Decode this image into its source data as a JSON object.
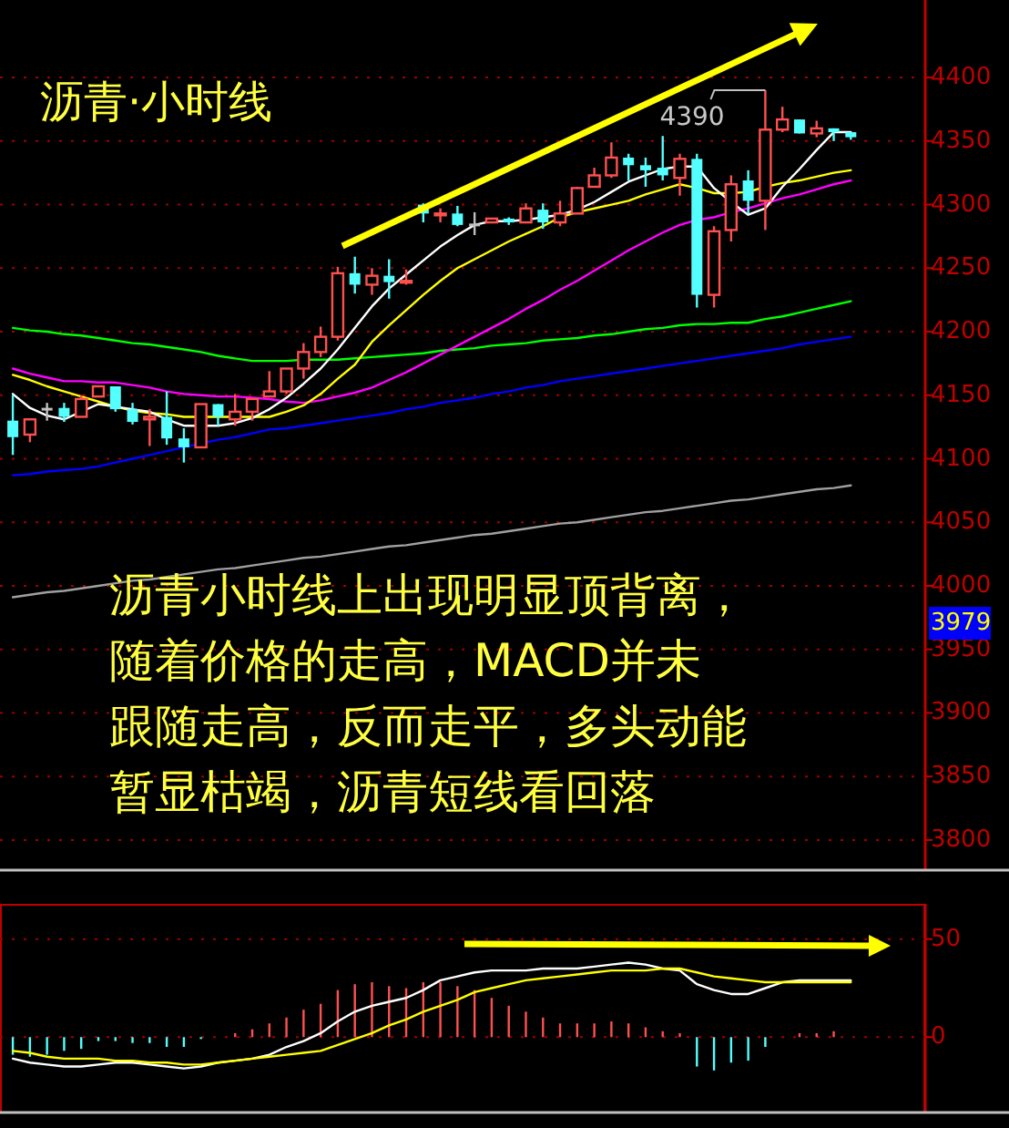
{
  "chart_data": [
    {
      "type": "candlestick",
      "title": "沥青·小时线",
      "categories": [
        null,
        null,
        null,
        null,
        null,
        null,
        null,
        null,
        null,
        null,
        null,
        null,
        null,
        null,
        null,
        null,
        null,
        null,
        null,
        null,
        null,
        null,
        null,
        null,
        null,
        null,
        null,
        null,
        null,
        null,
        null,
        null,
        null,
        null,
        null,
        null,
        null,
        null,
        null,
        null,
        null,
        null,
        null,
        null,
        null,
        null,
        null,
        null,
        null,
        null
      ],
      "ohlc": [
        [
          4130,
          4150,
          4103,
          4117
        ],
        [
          4119,
          4131,
          4113,
          4131
        ],
        [
          4139,
          4144,
          4130,
          4139
        ],
        [
          4140,
          4144,
          4129,
          4133
        ],
        [
          4133,
          4150,
          4133,
          4147
        ],
        [
          4149,
          4157,
          4149,
          4157
        ],
        [
          4157,
          4157,
          4137,
          4139
        ],
        [
          4139,
          4144,
          4127,
          4129
        ],
        [
          4131,
          4139,
          4110,
          4133
        ],
        [
          4133,
          4153,
          4111,
          4116
        ],
        [
          4116,
          4124,
          4097,
          4109
        ],
        [
          4109,
          4143,
          4109,
          4143
        ],
        [
          4143,
          4143,
          4126,
          4133
        ],
        [
          4131,
          4151,
          4126,
          4137
        ],
        [
          4137,
          4147,
          4130,
          4147
        ],
        [
          4149,
          4169,
          4149,
          4153
        ],
        [
          4153,
          4171,
          4151,
          4171
        ],
        [
          4171,
          4191,
          4163,
          4184
        ],
        [
          4184,
          4204,
          4180,
          4196
        ],
        [
          4196,
          4251,
          4193,
          4246
        ],
        [
          4246,
          4259,
          4230,
          4237
        ],
        [
          4237,
          4250,
          4229,
          4244
        ],
        [
          4244,
          4257,
          4226,
          4239
        ],
        [
          4239,
          4249,
          4237,
          4240
        ],
        [
          4300,
          4301,
          4286,
          4293
        ],
        [
          4292,
          4297,
          4286,
          4293
        ],
        [
          4293,
          4299,
          4283,
          4284
        ],
        [
          4284,
          4294,
          4276,
          4284
        ],
        [
          4286,
          4289,
          4286,
          4289
        ],
        [
          4289,
          4290,
          4284,
          4286
        ],
        [
          4286,
          4301,
          4286,
          4297
        ],
        [
          4296,
          4301,
          4281,
          4286
        ],
        [
          4286,
          4303,
          4283,
          4293
        ],
        [
          4293,
          4314,
          4293,
          4313
        ],
        [
          4314,
          4329,
          4314,
          4323
        ],
        [
          4323,
          4349,
          4321,
          4337
        ],
        [
          4337,
          4340,
          4319,
          4331
        ],
        [
          4331,
          4337,
          4314,
          4327
        ],
        [
          4329,
          4354,
          4319,
          4323
        ],
        [
          4321,
          4340,
          4307,
          4336
        ],
        [
          4336,
          4340,
          4219,
          4229
        ],
        [
          4229,
          4283,
          4219,
          4279
        ],
        [
          4280,
          4323,
          4271,
          4316
        ],
        [
          4319,
          4327,
          4293,
          4303
        ],
        [
          4303,
          4390,
          4280,
          4359
        ],
        [
          4359,
          4377,
          4357,
          4367
        ],
        [
          4367,
          4367,
          4356,
          4356
        ],
        [
          4356,
          4366,
          4353,
          4360
        ],
        [
          4360,
          4360,
          4350,
          4357
        ],
        [
          4357,
          4357,
          4351,
          4353
        ]
      ],
      "series": [
        {
          "type": "line",
          "color": "#a0a0a0",
          "values": [
            3991,
            3993,
            3995,
            3996,
            3998,
            4000,
            4002,
            4004,
            4005,
            4007,
            4009,
            4011,
            4013,
            4014,
            4016,
            4018,
            4020,
            4022,
            4023,
            4025,
            4027,
            4029,
            4031,
            4032,
            4034,
            4036,
            4038,
            4040,
            4041,
            4043,
            4045,
            4047,
            4049,
            4050,
            4052,
            4054,
            4056,
            4058,
            4059,
            4061,
            4063,
            4065,
            4067,
            4068,
            4070,
            4072,
            4074,
            4076,
            4077,
            4079
          ]
        },
        {
          "type": "line",
          "color": "#0000ff",
          "values": [
            4087,
            4088,
            4090,
            4091,
            4092,
            4094,
            4097,
            4100,
            4103,
            4106,
            4109,
            4112,
            4115,
            4117,
            4120,
            4123,
            4124,
            4126,
            4128,
            4130,
            4132,
            4134,
            4136,
            4139,
            4141,
            4144,
            4146,
            4148,
            4151,
            4153,
            4156,
            4158,
            4161,
            4163,
            4165,
            4167,
            4169,
            4171,
            4173,
            4175,
            4177,
            4179,
            4181,
            4183,
            4185,
            4187,
            4190,
            4192,
            4194,
            4196
          ]
        },
        {
          "type": "line",
          "color": "#00ff00",
          "values": [
            4203,
            4201,
            4200,
            4198,
            4197,
            4195,
            4193,
            4191,
            4190,
            4188,
            4186,
            4184,
            4181,
            4179,
            4177,
            4177,
            4177,
            4178,
            4178,
            4178,
            4179,
            4180,
            4181,
            4182,
            4183,
            4185,
            4186,
            4187,
            4189,
            4190,
            4191,
            4193,
            4194,
            4195,
            4197,
            4198,
            4200,
            4202,
            4203,
            4205,
            4206,
            4206,
            4207,
            4207,
            4210,
            4212,
            4215,
            4218,
            4221,
            4224
          ]
        },
        {
          "type": "line",
          "color": "#ff00ff",
          "values": [
            4171,
            4167,
            4164,
            4161,
            4161,
            4160,
            4160,
            4158,
            4156,
            4153,
            4151,
            4150,
            4149,
            4149,
            4148,
            4147,
            4145,
            4144,
            4146,
            4149,
            4152,
            4156,
            4162,
            4168,
            4175,
            4182,
            4189,
            4196,
            4203,
            4210,
            4218,
            4225,
            4233,
            4240,
            4248,
            4256,
            4264,
            4271,
            4278,
            4284,
            4288,
            4290,
            4294,
            4297,
            4301,
            4305,
            4308,
            4312,
            4316,
            4319
          ]
        },
        {
          "type": "line",
          "color": "#ffff00",
          "values": [
            4166,
            4162,
            4157,
            4153,
            4149,
            4145,
            4141,
            4138,
            4136,
            4135,
            4133,
            4133,
            4133,
            4133,
            4133,
            4133,
            4137,
            4142,
            4151,
            4163,
            4174,
            4192,
            4205,
            4217,
            4229,
            4240,
            4250,
            4257,
            4264,
            4271,
            4277,
            4283,
            4290,
            4294,
            4297,
            4300,
            4303,
            4308,
            4312,
            4316,
            4313,
            4309,
            4309,
            4310,
            4314,
            4317,
            4319,
            4322,
            4325,
            4327
          ]
        },
        {
          "type": "line",
          "color": "#ffffff",
          "values": [
            4151,
            4140,
            4134,
            4131,
            4137,
            4143,
            4141,
            4139,
            4137,
            4131,
            4126,
            4126,
            4126,
            4128,
            4132,
            4139,
            4148,
            4159,
            4171,
            4186,
            4203,
            4220,
            4234,
            4245,
            4256,
            4267,
            4276,
            4284,
            4287,
            4287,
            4288,
            4290,
            4292,
            4296,
            4302,
            4310,
            4318,
            4323,
            4328,
            4330,
            4330,
            4313,
            4302,
            4292,
            4297,
            4314,
            4328,
            4343,
            4357,
            4357
          ]
        }
      ],
      "ylim": [
        3777,
        4461
      ],
      "yticks": [
        3800,
        3850,
        3900,
        3950,
        4000,
        4050,
        4100,
        4150,
        4200,
        4250,
        4300,
        4350,
        4400
      ],
      "grid": "y",
      "tick_labels": "y",
      "annotations": [
        "4390",
        "3979",
        "沥青小时线上出现明显顶背离，",
        "随着价格的走高，MACD并未",
        "跟随走高，反而走平，多头动能",
        "暂显枯竭，沥青短线看回落"
      ]
    },
    {
      "type": "bar",
      "categories": [
        null,
        null,
        null,
        null,
        null,
        null,
        null,
        null,
        null,
        null,
        null,
        null,
        null,
        null,
        null,
        null,
        null,
        null,
        null,
        null,
        null,
        null,
        null,
        null,
        null,
        null,
        null,
        null,
        null,
        null,
        null,
        null,
        null,
        null,
        null,
        null,
        null,
        null,
        null,
        null,
        null,
        null,
        null,
        null,
        null,
        null,
        null,
        null,
        null,
        null
      ],
      "series": [
        {
          "type": "bar",
          "values": [
            -9,
            -10,
            -9,
            -7,
            -6,
            -2,
            -2,
            -3,
            -3,
            -5,
            -5,
            -1,
            null,
            2,
            4,
            7,
            10,
            14,
            17,
            24,
            27,
            28,
            26,
            25,
            28,
            28,
            26,
            24,
            20,
            16,
            13,
            10,
            7,
            7,
            7,
            8,
            7,
            5,
            3,
            2,
            -15,
            -17,
            -13,
            -12,
            -5,
            null,
            2,
            2,
            3,
            null
          ],
          "colors": [
            "#54ffff",
            "#54ffff",
            "#54ffff",
            "#54ffff",
            "#54ffff",
            "#54ffff",
            "#54ffff",
            "#54ffff",
            "#54ffff",
            "#54ffff",
            "#54ffff",
            "#54ffff",
            null,
            "#ff5050",
            "#ff5050",
            "#ff5050",
            "#ff5050",
            "#ff5050",
            "#ff5050",
            "#ff5050",
            "#ff5050",
            "#ff5050",
            "#ff5050",
            "#ff5050",
            "#ff5050",
            "#ff5050",
            "#ff5050",
            "#ff5050",
            "#ff5050",
            "#ff5050",
            "#ff5050",
            "#ff5050",
            "#ff5050",
            "#ff5050",
            "#ff5050",
            "#ff5050",
            "#ff5050",
            "#ff5050",
            "#ff5050",
            "#ff5050",
            "#54ffff",
            "#54ffff",
            "#54ffff",
            "#54ffff",
            "#54ffff",
            null,
            "#ff5050",
            "#ff5050",
            "#ff5050",
            null
          ]
        },
        {
          "type": "line",
          "color": "#ffffff",
          "values": [
            -11,
            -13,
            -14,
            -15,
            -15,
            -14,
            -13,
            -13,
            -14,
            -15,
            -16,
            -15,
            -13,
            -12,
            -11,
            -9,
            -5,
            -2,
            2,
            8,
            13,
            16,
            18,
            20,
            24,
            29,
            31,
            33,
            34,
            34,
            34,
            35,
            35,
            35,
            36,
            37,
            38,
            37,
            35,
            34,
            27,
            24,
            22,
            22,
            25,
            28,
            29,
            29,
            29,
            29
          ]
        },
        {
          "type": "line",
          "color": "#ffff00",
          "values": [
            -7,
            -8,
            -10,
            -11,
            -11,
            -11,
            -12,
            -12,
            -13,
            -13,
            -14,
            -14,
            -13,
            -12,
            -11,
            -10,
            -9,
            -8,
            -7,
            -4,
            -1,
            2,
            6,
            9,
            13,
            16,
            19,
            23,
            25,
            27,
            29,
            30,
            31,
            32,
            33,
            34,
            34,
            34,
            35,
            35,
            33,
            31,
            30,
            29,
            28,
            28,
            28,
            28,
            28,
            28
          ]
        }
      ],
      "ylim": [
        -38,
        68
      ],
      "yticks": [
        0,
        50
      ],
      "grid": "y",
      "tick_labels": "y"
    }
  ]
}
